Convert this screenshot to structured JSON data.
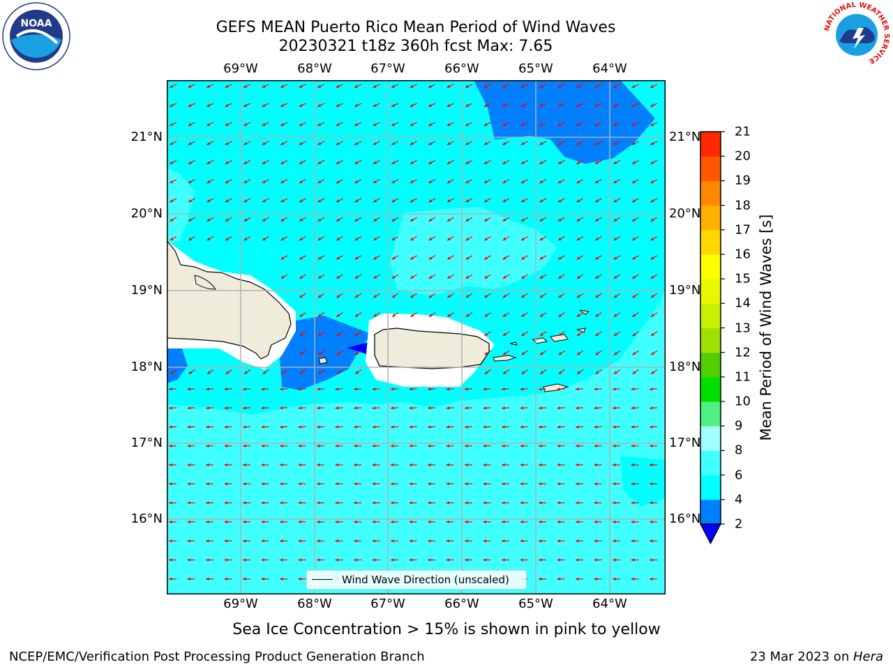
{
  "header": {
    "title_line1": "GEFS MEAN Puerto Rico Mean Period of Wind Waves",
    "title_line2": "20230321 t18z 360h fcst   Max: 7.65"
  },
  "logos": {
    "left": "NOAA",
    "right": "NATIONAL WEATHER SERVICE"
  },
  "map": {
    "lon_ticks": [
      "69°W",
      "68°W",
      "67°W",
      "66°W",
      "65°W",
      "64°W"
    ],
    "lat_ticks": [
      "21°N",
      "20°N",
      "19°N",
      "18°N",
      "17°N",
      "16°N"
    ],
    "legend_label": "Wind Wave Direction (unscaled)",
    "colors": {
      "ocean_main": "#00ffff",
      "ocean_light": "#40ffff",
      "ocean_dark": "#0080ff",
      "land": "#efecdc",
      "arrow": "#ff0000",
      "grid": "#b0b0b0"
    }
  },
  "colorbar": {
    "label": "Mean Period of Wind Waves [s]",
    "ticks": [
      "2",
      "4",
      "6",
      "8",
      "9",
      "10",
      "11",
      "12",
      "13",
      "14",
      "15",
      "16",
      "17",
      "18",
      "19",
      "20",
      "21"
    ],
    "colors": [
      "#0080ff",
      "#00ffff",
      "#40ffff",
      "#a0ffff",
      "#50f080",
      "#00e000",
      "#50d000",
      "#a0e000",
      "#c8f000",
      "#e8f800",
      "#ffff00",
      "#ffd800",
      "#ffb000",
      "#ff8800",
      "#ff5800",
      "#ff2800",
      "#ff0000"
    ],
    "under_color": "#0000ff"
  },
  "note": "Sea Ice Concentration > 15% is shown in pink to yellow",
  "footer": {
    "left": "NCEP/EMC/Verification Post Processing Product Generation Branch",
    "right_prefix": "23 Mar 2023 on ",
    "right_machine": "Hera"
  }
}
